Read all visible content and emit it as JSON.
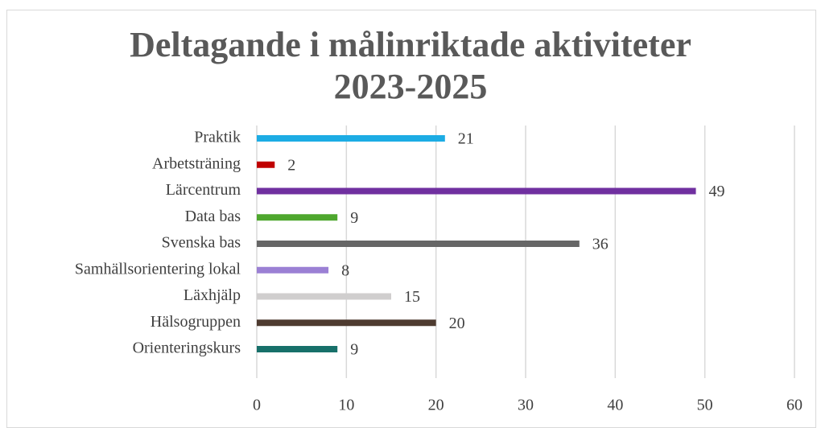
{
  "chart_data": {
    "type": "bar",
    "orientation": "horizontal",
    "title": "Deltagande i målinriktade aktiviteter 2023-2025",
    "categories": [
      "Praktik",
      "Arbetsträning",
      "Lärcentrum",
      "Data bas",
      "Svenska bas",
      "Samhällsorientering lokal",
      "Läxhjälp",
      "Hälsogruppen",
      "Orienteringskurs"
    ],
    "values": [
      21,
      2,
      49,
      9,
      36,
      8,
      15,
      20,
      9
    ],
    "colors": [
      "#1cace4",
      "#c00000",
      "#7030a0",
      "#4ea72e",
      "#666666",
      "#9b80d4",
      "#d0cece",
      "#4e3b30",
      "#17706a"
    ],
    "xlim": [
      0,
      60
    ],
    "xticks": [
      0,
      10,
      20,
      30,
      40,
      50,
      60
    ],
    "grid": true
  }
}
